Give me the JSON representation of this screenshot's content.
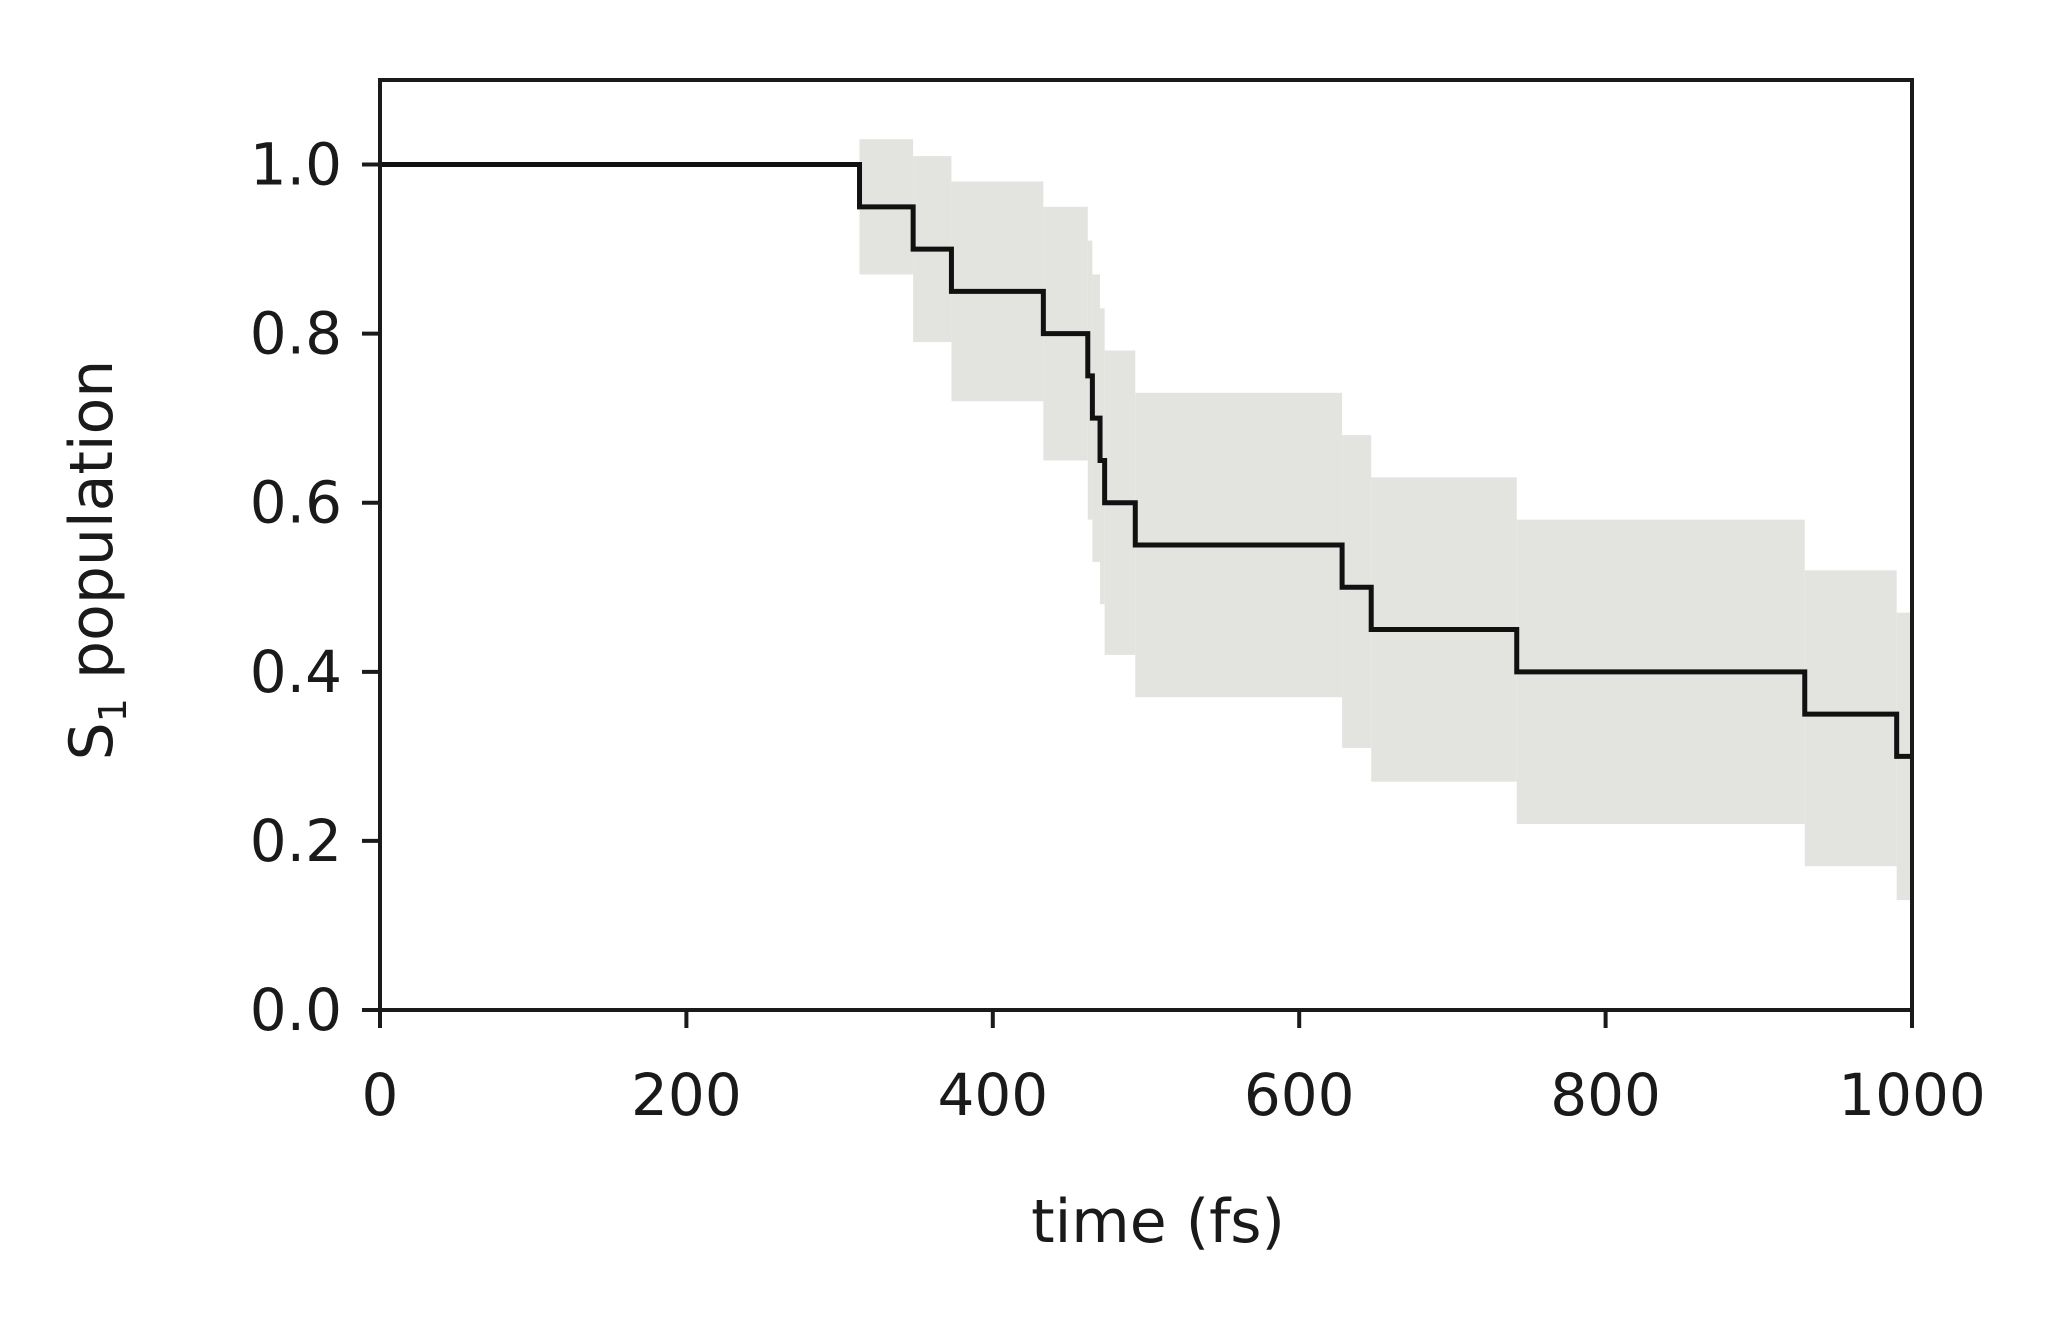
{
  "chart_data": {
    "type": "line",
    "step": true,
    "xlabel": "time (fs)",
    "ylabel": {
      "main": "S",
      "subscript": "1",
      "rest": " population"
    },
    "xlim": [
      0,
      1000
    ],
    "ylim": [
      0,
      1.1
    ],
    "xticks": [
      0,
      200,
      400,
      600,
      800,
      1000
    ],
    "xtick_labels": [
      "0",
      "200",
      "400",
      "600",
      "800",
      "1000"
    ],
    "yticks": [
      0,
      0.2,
      0.4,
      0.6,
      0.8,
      1.0
    ],
    "ytick_labels": [
      "0.0",
      "0.2",
      "0.4",
      "0.6",
      "0.8",
      "1.0"
    ],
    "grid": false,
    "series": [
      {
        "type": "step-line",
        "color": "#111111",
        "x": [
          0,
          313,
          348,
          373,
          433,
          462,
          465,
          470,
          473,
          493,
          628,
          647,
          742,
          930,
          990,
          1000
        ],
        "y": [
          1.0,
          0.95,
          0.9,
          0.85,
          0.8,
          0.75,
          0.7,
          0.65,
          0.6,
          0.55,
          0.5,
          0.45,
          0.4,
          0.35,
          0.3,
          0.3
        ]
      },
      {
        "type": "confidence-band",
        "color": "#e3e4e0",
        "x": [
          313,
          348,
          373,
          433,
          462,
          465,
          470,
          473,
          493,
          628,
          647,
          742,
          930,
          990,
          1000
        ],
        "lower": [
          0.87,
          0.79,
          0.72,
          0.65,
          0.58,
          0.53,
          0.48,
          0.42,
          0.37,
          0.31,
          0.27,
          0.22,
          0.17,
          0.13,
          0.13
        ],
        "upper": [
          1.03,
          1.01,
          0.98,
          0.95,
          0.91,
          0.87,
          0.83,
          0.78,
          0.73,
          0.68,
          0.63,
          0.58,
          0.52,
          0.47,
          0.47
        ]
      }
    ]
  }
}
